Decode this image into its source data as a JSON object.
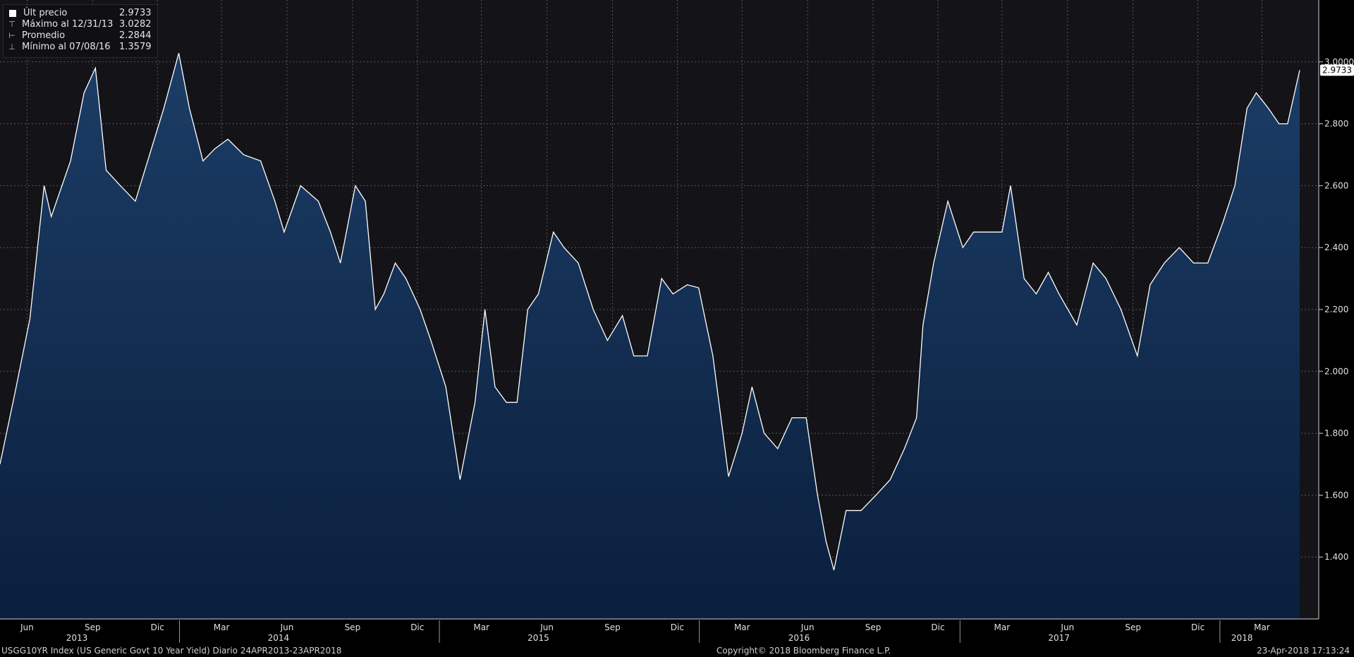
{
  "legend": {
    "last_label": "Últ precio",
    "last_value": "2.9733",
    "max_label": "Máximo al 12/31/13",
    "max_value": "3.0282",
    "avg_label": "Promedio",
    "avg_value": "2.2844",
    "min_label": "Mínimo al 07/08/16",
    "min_value": "1.3579"
  },
  "footer": {
    "left": "USGG10YR Index (US Generic Govt 10 Year Yield)  Diario 24APR2013-23APR2018",
    "center": "Copyright© 2018 Bloomberg Finance L.P.",
    "right": "23-Apr-2018 17:13:24"
  },
  "colors": {
    "background": "#000000",
    "plot_bg": "#131318",
    "area": "#0d2a4d",
    "line": "#ffffff",
    "grid": "#5a5a5a"
  },
  "chart_data": {
    "type": "area",
    "title": "",
    "ylim": [
      1.2,
      3.2
    ],
    "yticks": [
      "1.400",
      "1.600",
      "1.800",
      "2.000",
      "2.200",
      "2.400",
      "2.600",
      "2.800",
      "3.0000"
    ],
    "last_value_label": "2.9733",
    "month_ticks": [
      "Jun",
      "Sep",
      "Dic",
      "Mar",
      "Jun",
      "Sep",
      "Dic",
      "Mar",
      "Jun",
      "Sep",
      "Dic",
      "Mar",
      "Jun",
      "Sep",
      "Dic",
      "Mar",
      "Jun",
      "Sep",
      "Dic",
      "Mar"
    ],
    "year_labels": [
      "2013",
      "2014",
      "2015",
      "2016",
      "2017",
      "2018"
    ],
    "grid": true,
    "x": [
      "2013-04-24",
      "2013-05-15",
      "2013-06-05",
      "2013-06-25",
      "2013-07-05",
      "2013-08-01",
      "2013-08-20",
      "2013-09-05",
      "2013-09-20",
      "2013-10-10",
      "2013-10-31",
      "2013-11-20",
      "2013-12-10",
      "2013-12-31",
      "2014-01-15",
      "2014-02-03",
      "2014-02-20",
      "2014-03-10",
      "2014-04-01",
      "2014-04-25",
      "2014-05-15",
      "2014-05-28",
      "2014-06-20",
      "2014-07-15",
      "2014-08-01",
      "2014-08-15",
      "2014-09-05",
      "2014-09-19",
      "2014-10-03",
      "2014-10-15",
      "2014-10-31",
      "2014-11-15",
      "2014-12-05",
      "2014-12-20",
      "2015-01-10",
      "2015-01-30",
      "2015-02-20",
      "2015-03-06",
      "2015-03-20",
      "2015-04-05",
      "2015-04-20",
      "2015-05-05",
      "2015-05-20",
      "2015-06-10",
      "2015-06-25",
      "2015-07-15",
      "2015-08-05",
      "2015-08-25",
      "2015-09-15",
      "2015-10-01",
      "2015-10-20",
      "2015-11-09",
      "2015-11-25",
      "2015-12-15",
      "2015-12-31",
      "2016-01-20",
      "2016-02-11",
      "2016-03-01",
      "2016-03-15",
      "2016-04-01",
      "2016-04-20",
      "2016-05-10",
      "2016-05-30",
      "2016-06-15",
      "2016-06-27",
      "2016-07-08",
      "2016-07-25",
      "2016-08-15",
      "2016-09-05",
      "2016-09-25",
      "2016-10-15",
      "2016-11-01",
      "2016-11-10",
      "2016-11-25",
      "2016-12-15",
      "2017-01-05",
      "2017-01-20",
      "2017-02-10",
      "2017-03-01",
      "2017-03-13",
      "2017-04-01",
      "2017-04-18",
      "2017-05-05",
      "2017-05-20",
      "2017-06-14",
      "2017-07-07",
      "2017-07-25",
      "2017-08-15",
      "2017-09-07",
      "2017-09-25",
      "2017-10-15",
      "2017-11-05",
      "2017-11-25",
      "2017-12-15",
      "2018-01-05",
      "2018-01-22",
      "2018-02-08",
      "2018-02-21",
      "2018-03-10",
      "2018-03-25",
      "2018-04-06",
      "2018-04-23"
    ],
    "series": [
      {
        "values": [
          1.7,
          1.93,
          2.17,
          2.6,
          2.5,
          2.68,
          2.9,
          2.98,
          2.65,
          2.6,
          2.55,
          2.7,
          2.85,
          3.0282,
          2.85,
          2.68,
          2.72,
          2.75,
          2.7,
          2.68,
          2.55,
          2.45,
          2.6,
          2.55,
          2.45,
          2.35,
          2.6,
          2.55,
          2.2,
          2.25,
          2.35,
          2.3,
          2.2,
          2.1,
          1.95,
          1.65,
          1.9,
          2.2,
          1.95,
          1.9,
          1.9,
          2.2,
          2.25,
          2.45,
          2.4,
          2.35,
          2.2,
          2.1,
          2.18,
          2.05,
          2.05,
          2.3,
          2.25,
          2.28,
          2.27,
          2.05,
          1.66,
          1.8,
          1.95,
          1.8,
          1.75,
          1.85,
          1.85,
          1.6,
          1.45,
          1.3579,
          1.55,
          1.55,
          1.6,
          1.65,
          1.75,
          1.85,
          2.15,
          2.35,
          2.55,
          2.4,
          2.45,
          2.45,
          2.45,
          2.6,
          2.3,
          2.25,
          2.32,
          2.25,
          2.15,
          2.35,
          2.3,
          2.2,
          2.05,
          2.28,
          2.35,
          2.4,
          2.35,
          2.35,
          2.48,
          2.6,
          2.85,
          2.9,
          2.85,
          2.8,
          2.8,
          2.9733
        ]
      }
    ]
  }
}
